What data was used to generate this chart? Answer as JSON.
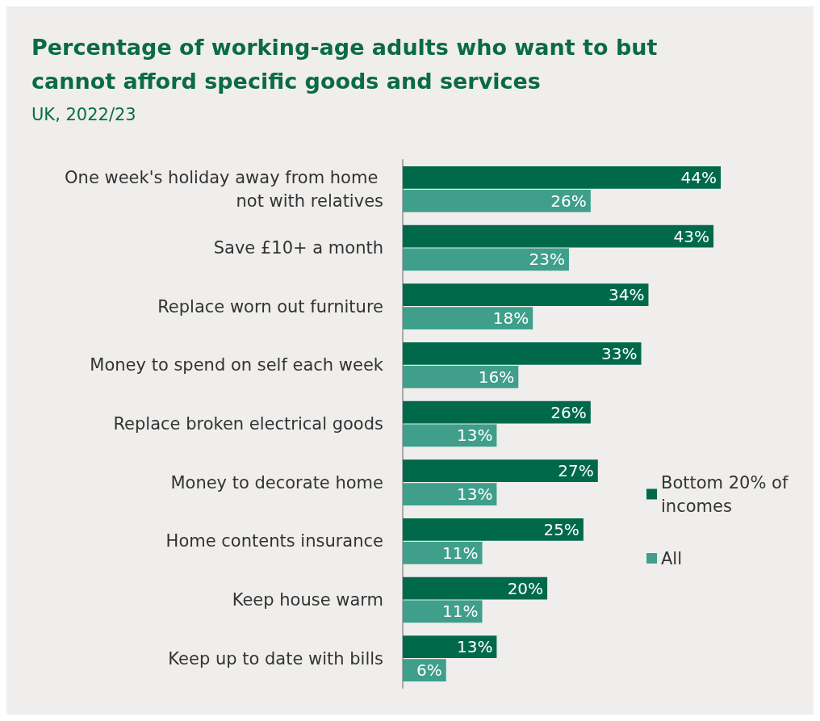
{
  "chart_data": {
    "type": "bar",
    "orientation": "horizontal",
    "title": "Percentage of working-age adults who want to but cannot afford specific goods and services",
    "subtitle": "UK, 2022/23",
    "categories": [
      "One week's holiday away from home not with relatives",
      "Save £10+ a month",
      "Replace worn out furniture",
      "Money to spend on self each week",
      "Replace broken electrical goods",
      "Money to decorate home",
      "Home contents insurance",
      "Keep house warm",
      "Keep up to date with bills"
    ],
    "series": [
      {
        "name": "Bottom 20% of incomes",
        "color": "#00694a",
        "values": [
          44,
          43,
          34,
          33,
          26,
          27,
          25,
          20,
          13
        ],
        "value_labels": [
          "44%",
          "43%",
          "34%",
          "33%",
          "26%",
          "27%",
          "25%",
          "20%",
          "13%"
        ]
      },
      {
        "name": "All",
        "color": "#3f9f8b",
        "values": [
          26,
          23,
          18,
          16,
          13,
          13,
          11,
          11,
          6
        ],
        "value_labels": [
          "26%",
          "23%",
          "18%",
          "16%",
          "13%",
          "13%",
          "11%",
          "11%",
          "6%"
        ]
      }
    ],
    "legend": "right"
  }
}
